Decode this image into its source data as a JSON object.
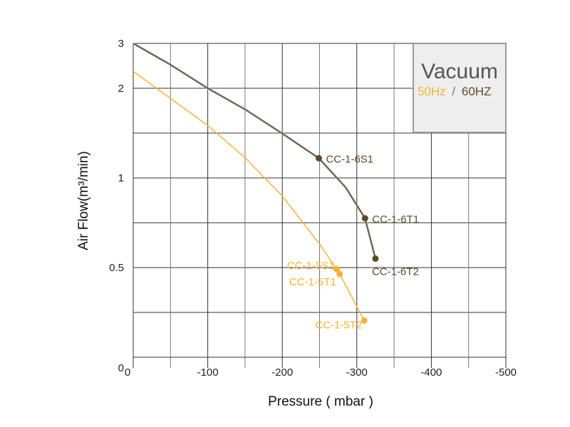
{
  "chart_data": {
    "type": "line",
    "title": "Vacuum",
    "legend": {
      "s50": "50Hz",
      "sep": "/",
      "s60": "60HZ",
      "placement": "top-right"
    },
    "xlabel": "Pressure ( mbar )",
    "ylabel": "Air Flow(m³/min)",
    "xlim": [
      0,
      -500
    ],
    "ylim": [
      0.25,
      2.83
    ],
    "yscale": "log",
    "x_ticks": [
      {
        "v": 0,
        "label": "0"
      },
      {
        "v": -100,
        "label": "-100"
      },
      {
        "v": -200,
        "label": "-200"
      },
      {
        "v": -300,
        "label": "-300"
      },
      {
        "v": -400,
        "label": "-400"
      },
      {
        "v": -500,
        "label": "-500"
      }
    ],
    "y_ticks": [
      {
        "v": 2.83,
        "label": "3"
      },
      {
        "v": 2,
        "label": "2"
      },
      {
        "v": 1,
        "label": "1"
      },
      {
        "v": 0.5,
        "label": "0.5"
      }
    ],
    "grid": true,
    "colors": {
      "s50": "#f5b335",
      "s60": "#5a4a28"
    },
    "series": [
      {
        "name": "60Hz",
        "color_key": "s60",
        "curve": [
          [
            0,
            2.83
          ],
          [
            -50,
            2.4
          ],
          [
            -100,
            2.0
          ],
          [
            -150,
            1.7
          ],
          [
            -200,
            1.41
          ],
          [
            -249,
            1.165
          ],
          [
            -285,
            0.93
          ],
          [
            -311,
            0.732
          ],
          [
            -325,
            0.536
          ]
        ],
        "points": [
          {
            "x": -249,
            "y": 1.165,
            "label": "CC-1-6S1",
            "pos": "right"
          },
          {
            "x": -311,
            "y": 0.732,
            "label": "CC-1-6T1",
            "pos": "right"
          },
          {
            "x": -325,
            "y": 0.536,
            "label": "CC-1-6T2",
            "pos": "below"
          }
        ]
      },
      {
        "name": "50Hz",
        "color_key": "s50",
        "curve": [
          [
            0,
            2.28
          ],
          [
            -50,
            1.85
          ],
          [
            -100,
            1.5
          ],
          [
            -150,
            1.17
          ],
          [
            -200,
            0.87
          ],
          [
            -250,
            0.6
          ],
          [
            -273,
            0.494
          ],
          [
            -277,
            0.476
          ],
          [
            -310,
            0.332
          ]
        ],
        "points": [
          {
            "x": -273,
            "y": 0.494,
            "label": "CC-1-5S1",
            "pos": "left"
          },
          {
            "x": -277,
            "y": 0.476,
            "label": "CC-1-5T1",
            "pos": "left2"
          },
          {
            "x": -310,
            "y": 0.332,
            "label": "CC-1-5T2",
            "pos": "leftbelow"
          }
        ]
      }
    ]
  }
}
